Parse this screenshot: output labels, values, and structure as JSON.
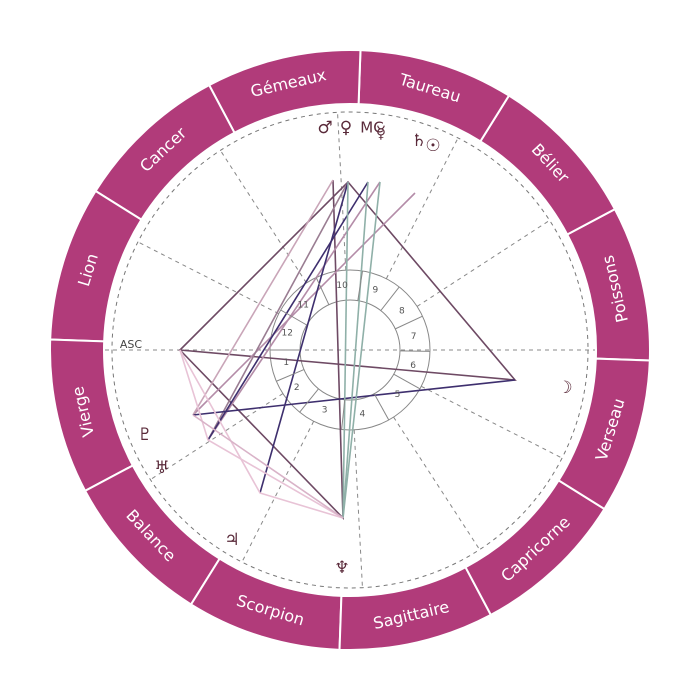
{
  "wheel": {
    "signs": [
      "Poissons",
      "Bélier",
      "Taureau",
      "Gémeaux",
      "Cancer",
      "Lion",
      "Vierge",
      "Balance",
      "Scorpion",
      "Sagittaire",
      "Capricorne",
      "Verseau"
    ],
    "asc": "ASC",
    "mc": "MC",
    "houses": [
      "1",
      "2",
      "3",
      "4",
      "5",
      "6",
      "7",
      "8",
      "9",
      "10",
      "11",
      "12"
    ],
    "planets": [
      "♂",
      "♀",
      "☿",
      "♄",
      "☉",
      "☽",
      "♆",
      "♃",
      "♅",
      "♇"
    ]
  }
}
